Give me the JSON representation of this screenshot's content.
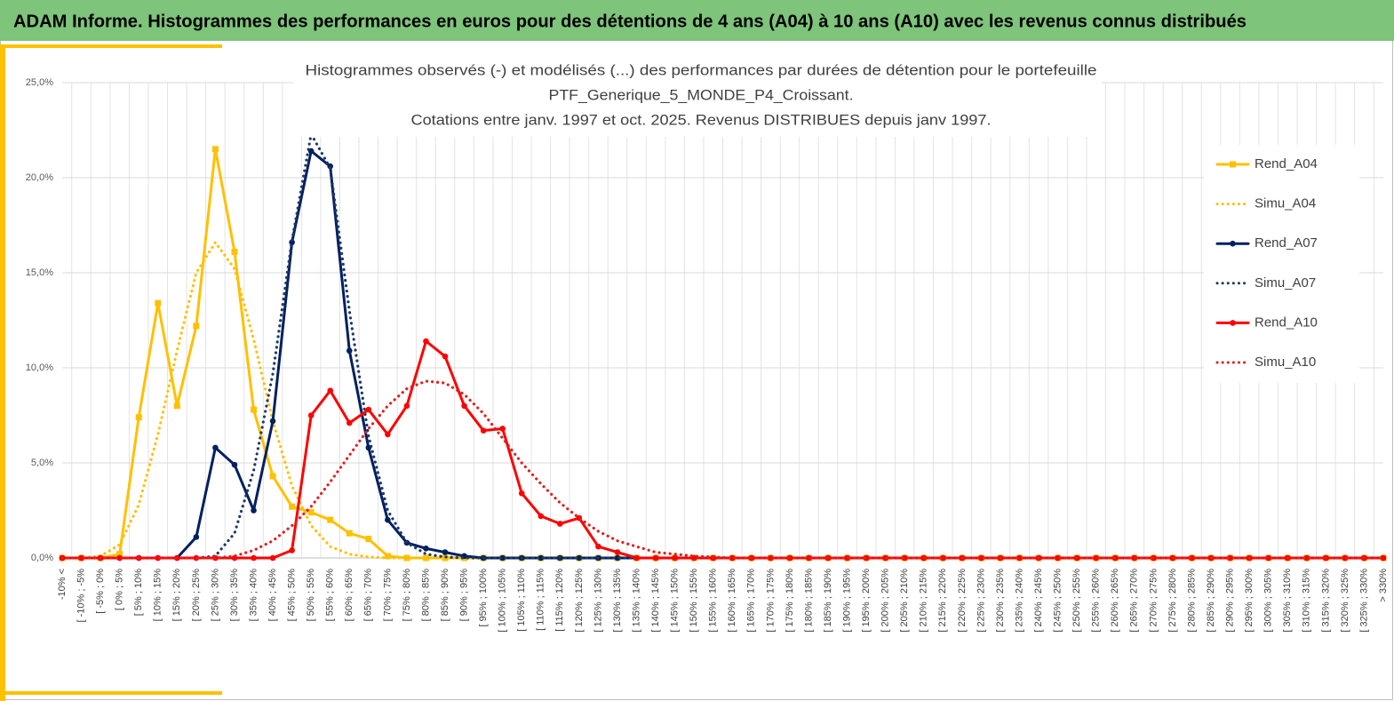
{
  "header": {
    "title": "ADAM Informe. Histogrammes des performances en euros pour des détentions de 4 ans (A04) à 10 ans (A10) avec les revenus connus distribués"
  },
  "chart_data": {
    "type": "line",
    "title": [
      "Histogrammes observés (-) et modélisés (...) des performances par durées de détention pour le portefeuille",
      "PTF_Generique_5_MONDE_P4_Croissant.",
      "Cotations entre janv. 1997 et oct. 2025. Revenus DISTRIBUES depuis janv 1997."
    ],
    "categories": [
      "-10% <",
      "[ -10% ; -5%",
      "[ -5% ; 0%",
      "[ 0% ; 5%",
      "[ 5% ; 10%",
      "[ 10% ; 15%",
      "[ 15% ; 20%",
      "[ 20% ; 25%",
      "[ 25% ; 30%",
      "[ 30% ; 35%",
      "[ 35% ; 40%",
      "[ 40% ; 45%",
      "[ 45% ; 50%",
      "[ 50% ; 55%",
      "[ 55% ; 60%",
      "[ 60% ; 65%",
      "[ 65% ; 70%",
      "[ 70% ; 75%",
      "[ 75% ; 80%",
      "[ 80% ; 85%",
      "[ 85% ; 90%",
      "[ 90% ; 95%",
      "[ 95% ; 100%",
      "[ 100% ; 105%",
      "[ 105% ; 110%",
      "[ 110% ; 115%",
      "[ 115% ; 120%",
      "[ 120% ; 125%",
      "[ 125% ; 130%",
      "[ 130% ; 135%",
      "[ 135% ; 140%",
      "[ 140% ; 145%",
      "[ 145% ; 150%",
      "[ 150% ; 155%",
      "[ 155% ; 160%",
      "[ 160% ; 165%",
      "[ 165% ; 170%",
      "[ 170% ; 175%",
      "[ 175% ; 180%",
      "[ 180% ; 185%",
      "[ 185% ; 190%",
      "[ 190% ; 195%",
      "[ 195% ; 200%",
      "[ 200% ; 205%",
      "[ 205% ; 210%",
      "[ 210% ; 215%",
      "[ 215% ; 220%",
      "[ 220% ; 225%",
      "[ 225% ; 230%",
      "[ 230% ; 235%",
      "[ 235% ; 240%",
      "[ 240% ; 245%",
      "[ 245% ; 250%",
      "[ 250% ; 255%",
      "[ 255% ; 260%",
      "[ 260% ; 265%",
      "[ 265% ; 270%",
      "[ 270% ; 275%",
      "[ 275% ; 280%",
      "[ 280% ; 285%",
      "[ 285% ; 290%",
      "[ 290% ; 295%",
      "[ 295% ; 300%",
      "[ 300% ; 305%",
      "[ 305% ; 310%",
      "[ 310% ; 315%",
      "[ 315% ; 320%",
      "[ 320% ; 325%",
      "[ 325% ; 330%",
      "> 330%"
    ],
    "series": [
      {
        "name": "Rend_A04",
        "color": "#ffc000",
        "style": "solid",
        "marker": "square",
        "values": [
          0,
          0,
          0,
          0.2,
          7.4,
          13.4,
          8.0,
          12.2,
          21.5,
          16.1,
          7.8,
          4.3,
          2.7,
          2.4,
          2.0,
          1.3,
          1.0,
          0.1,
          0,
          0,
          0,
          0,
          0,
          0,
          0,
          0,
          0,
          0,
          0,
          0,
          0,
          0,
          0,
          0,
          0,
          0,
          0,
          0,
          0,
          0,
          0,
          0,
          0,
          0,
          0,
          0,
          0,
          0,
          0,
          0,
          0,
          0,
          0,
          0,
          0,
          0,
          0,
          0,
          0,
          0,
          0,
          0,
          0,
          0,
          0,
          0,
          0,
          0,
          0,
          0
        ]
      },
      {
        "name": "Simu_A04",
        "color": "#ffc000",
        "style": "dotted",
        "marker": "none",
        "values": [
          0,
          0,
          0.1,
          0.7,
          2.8,
          6.5,
          10.9,
          15.0,
          16.6,
          15.2,
          11.5,
          7.2,
          3.8,
          1.7,
          0.6,
          0.2,
          0.05,
          0,
          0,
          0,
          0,
          0,
          0,
          0,
          0,
          0,
          0,
          0,
          0,
          0,
          0,
          0,
          0,
          0,
          0,
          0,
          0,
          0,
          0,
          0,
          0,
          0,
          0,
          0,
          0,
          0,
          0,
          0,
          0,
          0,
          0,
          0,
          0,
          0,
          0,
          0,
          0,
          0,
          0,
          0,
          0,
          0,
          0,
          0,
          0,
          0,
          0,
          0,
          0,
          0
        ]
      },
      {
        "name": "Rend_A07",
        "color": "#002060",
        "style": "solid",
        "marker": "circle",
        "values": [
          0,
          0,
          0,
          0,
          0,
          0,
          0,
          1.1,
          5.8,
          4.9,
          2.5,
          7.2,
          16.6,
          21.4,
          20.6,
          10.9,
          5.8,
          2.0,
          0.8,
          0.5,
          0.3,
          0.1,
          0,
          0,
          0,
          0,
          0,
          0,
          0,
          0,
          0,
          0,
          0,
          0,
          0,
          0,
          0,
          0,
          0,
          0,
          0,
          0,
          0,
          0,
          0,
          0,
          0,
          0,
          0,
          0,
          0,
          0,
          0,
          0,
          0,
          0,
          0,
          0,
          0,
          0,
          0,
          0,
          0,
          0,
          0,
          0,
          0,
          0,
          0,
          0
        ]
      },
      {
        "name": "Simu_A07",
        "color": "#1f3864",
        "style": "dotted",
        "marker": "none",
        "values": [
          0,
          0,
          0,
          0,
          0,
          0,
          0,
          0,
          0.1,
          1.3,
          4.6,
          9.7,
          16.7,
          22.3,
          20.5,
          13.0,
          6.4,
          2.5,
          0.8,
          0.2,
          0.05,
          0,
          0,
          0,
          0,
          0,
          0,
          0,
          0,
          0,
          0,
          0,
          0,
          0,
          0,
          0,
          0,
          0,
          0,
          0,
          0,
          0,
          0,
          0,
          0,
          0,
          0,
          0,
          0,
          0,
          0,
          0,
          0,
          0,
          0,
          0,
          0,
          0,
          0,
          0,
          0,
          0,
          0,
          0,
          0,
          0,
          0,
          0,
          0,
          0
        ]
      },
      {
        "name": "Rend_A10",
        "color": "#ff0000",
        "style": "solid",
        "marker": "circle",
        "values": [
          0,
          0,
          0,
          0,
          0,
          0,
          0,
          0,
          0,
          0,
          0,
          0,
          0.4,
          7.5,
          8.8,
          7.1,
          7.8,
          6.5,
          8.0,
          11.4,
          10.6,
          8.0,
          6.7,
          6.8,
          3.4,
          2.2,
          1.8,
          2.1,
          0.6,
          0.3,
          0,
          0,
          0,
          0,
          0,
          0,
          0,
          0,
          0,
          0,
          0,
          0,
          0,
          0,
          0,
          0,
          0,
          0,
          0,
          0,
          0,
          0,
          0,
          0,
          0,
          0,
          0,
          0,
          0,
          0,
          0,
          0,
          0,
          0,
          0,
          0,
          0,
          0,
          0,
          0
        ]
      },
      {
        "name": "Simu_A10",
        "color": "#e02020",
        "style": "dotted",
        "marker": "none",
        "values": [
          0,
          0,
          0,
          0,
          0,
          0,
          0,
          0,
          0,
          0.1,
          0.4,
          0.9,
          1.7,
          2.7,
          4.0,
          5.4,
          6.8,
          8.0,
          8.9,
          9.3,
          9.2,
          8.6,
          7.6,
          6.3,
          5.0,
          3.9,
          2.9,
          2.1,
          1.4,
          0.9,
          0.6,
          0.3,
          0.2,
          0.1,
          0.05,
          0,
          0,
          0,
          0,
          0,
          0,
          0,
          0,
          0,
          0,
          0,
          0,
          0,
          0,
          0,
          0,
          0,
          0,
          0,
          0,
          0,
          0,
          0,
          0,
          0,
          0,
          0,
          0,
          0,
          0,
          0,
          0,
          0,
          0,
          0
        ]
      }
    ],
    "ylim": [
      0,
      25
    ],
    "yticks": [
      {
        "value": 0,
        "label": "0,0%"
      },
      {
        "value": 5,
        "label": "5,0%"
      },
      {
        "value": 10,
        "label": "10,0%"
      },
      {
        "value": 15,
        "label": "15,0%"
      },
      {
        "value": 20,
        "label": "20,0%"
      },
      {
        "value": 25,
        "label": "25,0%"
      }
    ],
    "grid": true,
    "legend": "right"
  }
}
